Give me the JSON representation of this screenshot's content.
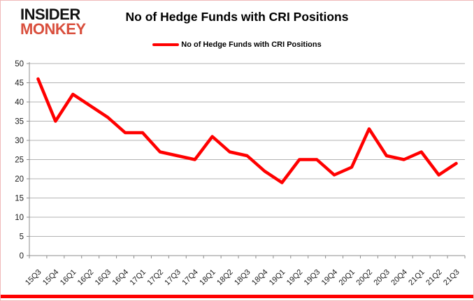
{
  "logo": {
    "line1": "INSIDER",
    "line2": "MONKEY"
  },
  "header": {
    "title": "No of Hedge Funds with CRI Positions"
  },
  "legend": {
    "label": "No of Hedge Funds with CRI Positions"
  },
  "colors": {
    "line": "#ff0000",
    "legend_swatch": "#ff0000",
    "logo_black": "#121212",
    "logo_red": "#d94f3d",
    "gridline": "#b3b3b3",
    "axis": "#8c8c8c",
    "tick_label": "#1a1a1a",
    "bottom_bar": "#fe0000",
    "frame_border": "#f0b9b9"
  },
  "chart_data": {
    "type": "line",
    "title": "No of Hedge Funds with CRI Positions",
    "xlabel": "",
    "ylabel": "",
    "ylim": [
      0,
      50
    ],
    "ytick_step": 5,
    "grid": "horizontal",
    "legend_position": "top",
    "categories": [
      "15Q3",
      "15Q4",
      "16Q1",
      "16Q2",
      "16Q3",
      "16Q4",
      "17Q1",
      "17Q2",
      "17Q3",
      "17Q4",
      "18Q1",
      "18Q2",
      "18Q3",
      "18Q4",
      "19Q1",
      "19Q2",
      "19Q3",
      "19Q4",
      "20Q1",
      "20Q2",
      "20Q3",
      "20Q4",
      "21Q1",
      "21Q2",
      "21Q3"
    ],
    "series": [
      {
        "name": "No of Hedge Funds with CRI Positions",
        "values": [
          46,
          35,
          42,
          39,
          36,
          32,
          32,
          27,
          26,
          25,
          31,
          27,
          26,
          22,
          19,
          25,
          25,
          21,
          23,
          33,
          26,
          25,
          27,
          21,
          24
        ]
      }
    ]
  }
}
